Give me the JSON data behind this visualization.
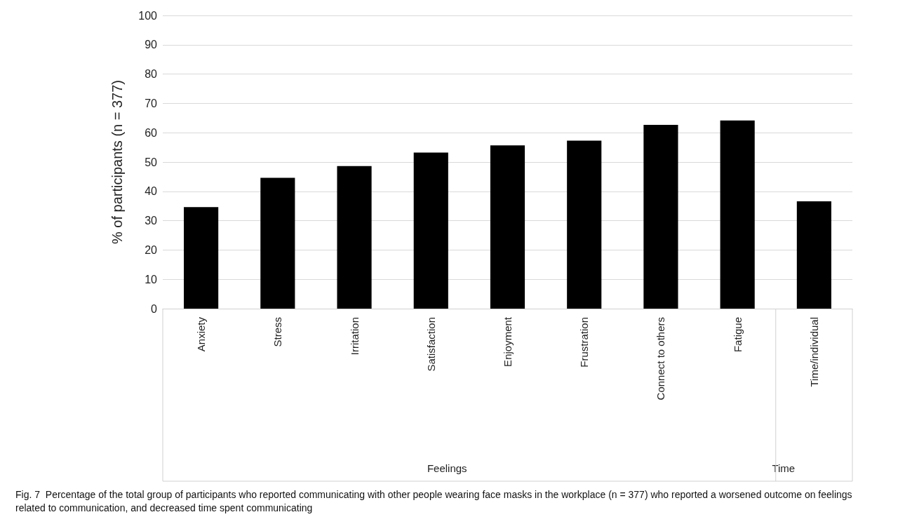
{
  "chart_data": {
    "type": "bar",
    "categories": [
      "Anxiety",
      "Stress",
      "Irritation",
      "Satisfaction",
      "Enjoyment",
      "Frustration",
      "Connect to others",
      "Fatigue",
      "Time/individual"
    ],
    "values": [
      34.6,
      44.6,
      48.6,
      53.2,
      55.7,
      57.3,
      62.7,
      64.2,
      36.6
    ],
    "color": "#000000",
    "ylabel": "% of participants (n = 377)",
    "ylim": [
      0,
      100
    ],
    "yticks": [
      0,
      10,
      20,
      30,
      40,
      50,
      60,
      70,
      80,
      90,
      100
    ],
    "grid": "y",
    "annotations": [
      "Feelings",
      "Time",
      "Fig. 7  Percentage of the total group of participants who reported communicating with other people wearing face masks in the workplace (n = 377) who reported a worsened outcome on feelings related to communication, and decreased time spent communicating"
    ]
  }
}
